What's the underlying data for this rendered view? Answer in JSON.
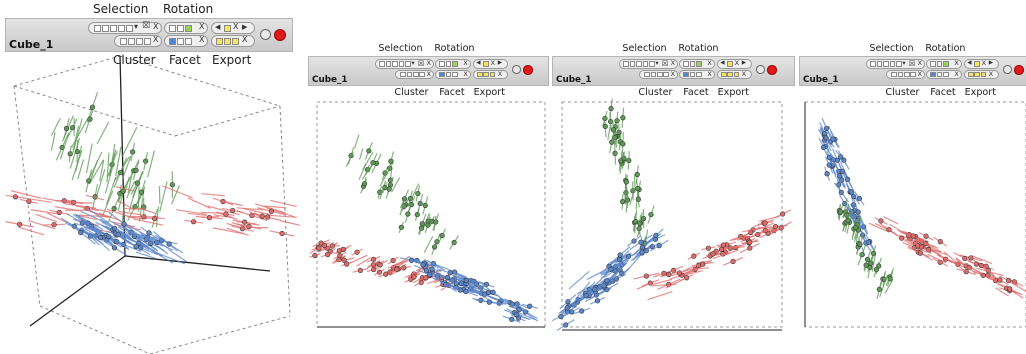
{
  "window": {
    "title": "Cube_1"
  },
  "toolbar": {
    "selection_label": "Selection",
    "rotation_label": "Rotation",
    "cluster_label": "Cluster",
    "facet_label": "Facet",
    "export_label": "Export",
    "close_glyph": "X",
    "clear_glyph": "☒",
    "dropdown_glyph": "▾",
    "prev_glyph": "◀",
    "next_glyph": "▶"
  },
  "views": [
    {
      "title": "Cube_1",
      "view": "3D cube projection"
    },
    {
      "title": "Cube_1",
      "view": "Projection 1"
    },
    {
      "title": "Cube_1",
      "view": "Projection 2"
    },
    {
      "title": "Cube_1",
      "view": "Projection 3"
    }
  ],
  "colors": {
    "cluster_red": "#e06a6a",
    "cluster_green": "#5e9a55",
    "cluster_blue": "#5a86cc",
    "toolbar_bg": "#d6d6d6",
    "record_button": "#e01a1a",
    "swatch_green": "#9bd35a",
    "swatch_blue": "#4f86d6",
    "swatch_yellow": "#f6e55a"
  },
  "icons": [
    "dropdown-icon",
    "clear-selection-icon",
    "close-icon",
    "prev-arrow-icon",
    "next-arrow-icon",
    "toggle-button",
    "record-button"
  ]
}
